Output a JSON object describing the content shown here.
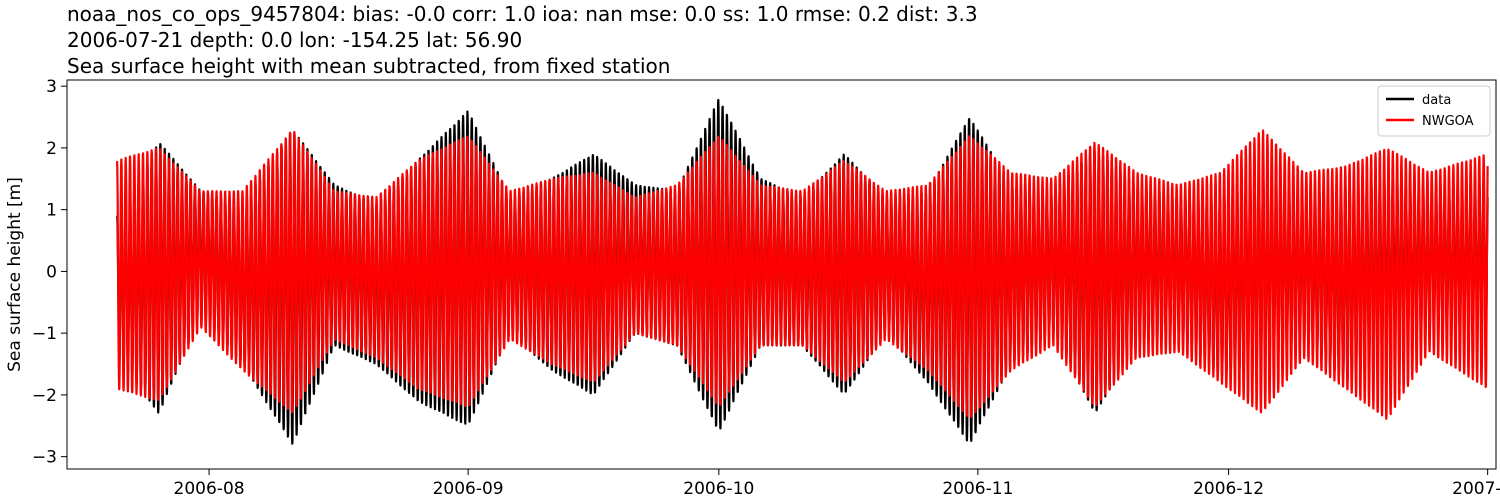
{
  "title_lines": [
    "noaa_nos_co_ops_9457804: bias: -0.0  corr: 1.0  ioa: nan  mse: 0.0  ss: 1.0  rmse: 0.2  dist: 3.3",
    "2006-07-21 depth: 0.0 lon: -154.25 lat: 56.90",
    "Sea surface height with mean subtracted, from fixed station"
  ],
  "chart_data": {
    "type": "line",
    "title": "noaa_nos_co_ops_9457804: bias: -0.0  corr: 1.0  ioa: nan  mse: 0.0  ss: 1.0  rmse: 0.2  dist: 3.3 / 2006-07-21 depth: 0.0 lon: -154.25 lat: 56.90 / Sea surface height with mean subtracted, from fixed station",
    "xlabel": "",
    "ylabel": "Sea surface height [m]",
    "x_type": "date",
    "xlim": [
      "2006-07-15",
      "2007-01-02"
    ],
    "ylim": [
      -3.2,
      3.1
    ],
    "x_ticks": [
      "2006-08",
      "2006-09",
      "2006-10",
      "2006-11",
      "2006-12",
      "2007-01"
    ],
    "y_ticks": [
      -3,
      -2,
      -1,
      0,
      1,
      2,
      3
    ],
    "grid": false,
    "legend": {
      "position": "top-right",
      "entries": [
        "data",
        "NWGOA"
      ]
    },
    "x_range": [
      "2006-07-21",
      "2007-01-01"
    ],
    "envelope_dates": [
      "2006-07-21",
      "2006-07-26",
      "2006-07-31",
      "2006-08-05",
      "2006-08-11",
      "2006-08-16",
      "2006-08-21",
      "2006-08-26",
      "2006-09-01",
      "2006-09-06",
      "2006-09-11",
      "2006-09-16",
      "2006-09-21",
      "2006-09-26",
      "2006-10-01",
      "2006-10-06",
      "2006-10-11",
      "2006-10-16",
      "2006-10-21",
      "2006-10-26",
      "2006-10-31",
      "2006-11-05",
      "2006-11-10",
      "2006-11-15",
      "2006-11-20",
      "2006-11-25",
      "2006-11-30",
      "2006-12-05",
      "2006-12-10",
      "2006-12-15",
      "2006-12-20",
      "2006-12-25",
      "2007-01-01"
    ],
    "series": [
      {
        "name": "data",
        "color": "#000000",
        "envelope_max": [
          0.9,
          2.1,
          1.3,
          1.1,
          2.3,
          1.4,
          1.1,
          1.8,
          2.6,
          1.2,
          1.5,
          1.9,
          1.4,
          1.3,
          2.8,
          1.5,
          1.2,
          1.9,
          1.2,
          1.3,
          2.5,
          1.4,
          1.3,
          2.0,
          1.4,
          1.2,
          1.2,
          1.6,
          1.2,
          1.4,
          1.5,
          1.3,
          1.4
        ],
        "envelope_min": [
          -1.4,
          -2.3,
          -0.7,
          -1.5,
          -2.8,
          -1.2,
          -1.5,
          -2.1,
          -2.5,
          -1.0,
          -1.6,
          -2.0,
          -1.0,
          -1.2,
          -2.6,
          -1.2,
          -1.2,
          -2.0,
          -1.0,
          -1.8,
          -2.8,
          -1.5,
          -1.0,
          -2.3,
          -1.2,
          -1.0,
          -1.7,
          -1.5,
          -1.1,
          -1.8,
          -1.2,
          -1.0,
          -1.0
        ]
      },
      {
        "name": "NWGOA",
        "color": "#ff0000",
        "envelope_max": [
          1.8,
          2.0,
          1.3,
          1.3,
          2.3,
          1.3,
          1.2,
          1.8,
          2.2,
          1.3,
          1.5,
          1.6,
          1.2,
          1.4,
          2.2,
          1.4,
          1.3,
          1.8,
          1.3,
          1.4,
          2.2,
          1.6,
          1.5,
          2.1,
          1.6,
          1.4,
          1.6,
          2.3,
          1.6,
          1.7,
          2.0,
          1.6,
          1.9
        ],
        "envelope_min": [
          -1.9,
          -2.1,
          -0.9,
          -1.6,
          -2.3,
          -1.1,
          -1.4,
          -1.9,
          -2.2,
          -1.1,
          -1.5,
          -1.8,
          -1.0,
          -1.2,
          -2.2,
          -1.2,
          -1.2,
          -1.8,
          -1.1,
          -1.6,
          -2.4,
          -1.6,
          -1.2,
          -2.2,
          -1.4,
          -1.3,
          -1.8,
          -2.3,
          -1.4,
          -1.9,
          -2.4,
          -1.3,
          -1.9
        ]
      }
    ]
  }
}
